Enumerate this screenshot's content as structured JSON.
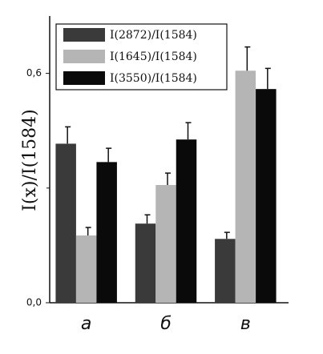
{
  "chart_data": {
    "type": "bar",
    "ylabel": "I(x)/I(1584)",
    "categories": [
      "а",
      "б",
      "в"
    ],
    "series": [
      {
        "name": "I(2872)/I(1584)",
        "color": "#3a3a3a",
        "values": [
          0.416,
          0.207,
          0.167
        ],
        "errors": [
          0.044,
          0.023,
          0.017
        ]
      },
      {
        "name": "I(1645)/I(1584)",
        "color": "#b5b5b5",
        "values": [
          0.176,
          0.308,
          0.607
        ],
        "errors": [
          0.021,
          0.031,
          0.062
        ]
      },
      {
        "name": "I(3550)/I(1584)",
        "color": "#0a0a0a",
        "values": [
          0.368,
          0.427,
          0.559
        ],
        "errors": [
          0.036,
          0.044,
          0.054
        ]
      }
    ],
    "ylim": [
      0,
      0.75
    ],
    "yticks": [
      {
        "value": 0,
        "label": "0,0"
      },
      {
        "value": 0.6,
        "label": "0,6"
      }
    ],
    "yticks_minor": [
      0.3
    ],
    "legend": "upper left"
  }
}
